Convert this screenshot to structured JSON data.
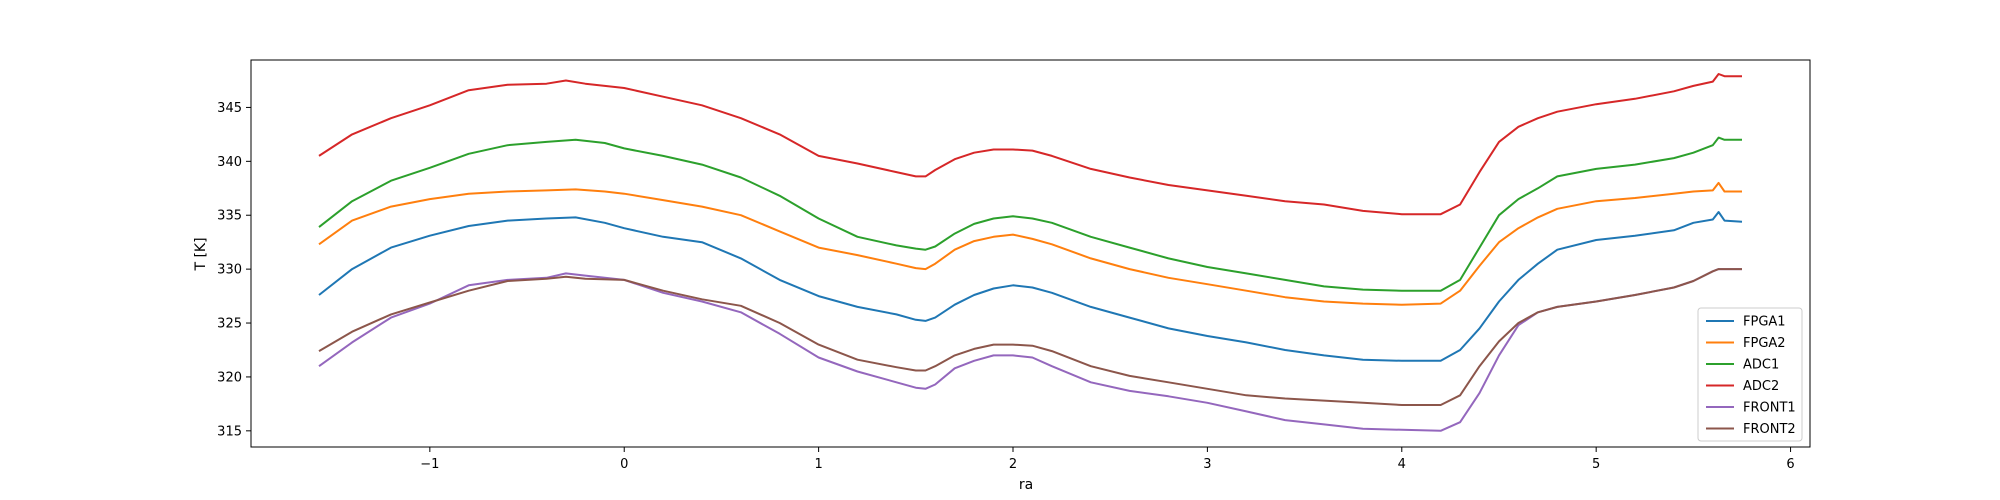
{
  "chart_data": {
    "type": "line",
    "xlabel": "ra",
    "ylabel": "T [K]",
    "xlim": [
      -1.92,
      6.1
    ],
    "ylim": [
      313.5,
      349.4
    ],
    "xticks": [
      -1,
      0,
      1,
      2,
      3,
      4,
      5,
      6
    ],
    "yticks": [
      315,
      320,
      325,
      330,
      335,
      340,
      345
    ],
    "grid": false,
    "legend_position": "lower-right",
    "series": [
      {
        "name": "FPGA1",
        "color": "#1f77b4",
        "x": [
          -1.57,
          -1.4,
          -1.2,
          -1.0,
          -0.8,
          -0.6,
          -0.4,
          -0.25,
          -0.1,
          0.0,
          0.2,
          0.4,
          0.6,
          0.8,
          1.0,
          1.2,
          1.4,
          1.5,
          1.55,
          1.6,
          1.7,
          1.8,
          1.9,
          2.0,
          2.1,
          2.2,
          2.4,
          2.6,
          2.8,
          3.0,
          3.2,
          3.4,
          3.6,
          3.8,
          4.0,
          4.2,
          4.3,
          4.4,
          4.5,
          4.6,
          4.7,
          4.8,
          5.0,
          5.2,
          5.4,
          5.5,
          5.6,
          5.63,
          5.66,
          5.75
        ],
        "y": [
          327.6,
          330.0,
          332.0,
          333.1,
          334.0,
          334.5,
          334.7,
          334.8,
          334.3,
          333.8,
          333.0,
          332.5,
          331.0,
          329.0,
          327.5,
          326.5,
          325.8,
          325.3,
          325.2,
          325.5,
          326.7,
          327.6,
          328.2,
          328.5,
          328.3,
          327.8,
          326.5,
          325.5,
          324.5,
          323.8,
          323.2,
          322.5,
          322.0,
          321.6,
          321.5,
          321.5,
          322.5,
          324.5,
          327.0,
          329.0,
          330.5,
          331.8,
          332.7,
          333.1,
          333.6,
          334.3,
          334.6,
          335.3,
          334.5,
          334.4
        ]
      },
      {
        "name": "FPGA2",
        "color": "#ff7f0e",
        "x": [
          -1.57,
          -1.4,
          -1.2,
          -1.0,
          -0.8,
          -0.6,
          -0.4,
          -0.25,
          -0.1,
          0.0,
          0.2,
          0.4,
          0.6,
          0.8,
          1.0,
          1.2,
          1.4,
          1.5,
          1.55,
          1.6,
          1.7,
          1.8,
          1.9,
          2.0,
          2.1,
          2.2,
          2.4,
          2.6,
          2.8,
          3.0,
          3.2,
          3.4,
          3.6,
          3.8,
          4.0,
          4.2,
          4.3,
          4.4,
          4.5,
          4.6,
          4.7,
          4.8,
          5.0,
          5.2,
          5.4,
          5.5,
          5.6,
          5.63,
          5.66,
          5.75
        ],
        "y": [
          332.3,
          334.5,
          335.8,
          336.5,
          337.0,
          337.2,
          337.3,
          337.4,
          337.2,
          337.0,
          336.4,
          335.8,
          335.0,
          333.5,
          332.0,
          331.3,
          330.5,
          330.1,
          330.0,
          330.5,
          331.8,
          332.6,
          333.0,
          333.2,
          332.8,
          332.3,
          331.0,
          330.0,
          329.2,
          328.6,
          328.0,
          327.4,
          327.0,
          326.8,
          326.7,
          326.8,
          328.0,
          330.3,
          332.5,
          333.8,
          334.8,
          335.6,
          336.3,
          336.6,
          337.0,
          337.2,
          337.3,
          338.0,
          337.2,
          337.2
        ]
      },
      {
        "name": "ADC1",
        "color": "#2ca02c",
        "x": [
          -1.57,
          -1.4,
          -1.2,
          -1.0,
          -0.8,
          -0.6,
          -0.4,
          -0.25,
          -0.1,
          0.0,
          0.2,
          0.4,
          0.6,
          0.8,
          1.0,
          1.2,
          1.4,
          1.5,
          1.55,
          1.6,
          1.7,
          1.8,
          1.9,
          2.0,
          2.1,
          2.2,
          2.4,
          2.6,
          2.8,
          3.0,
          3.2,
          3.4,
          3.6,
          3.8,
          4.0,
          4.2,
          4.3,
          4.4,
          4.5,
          4.6,
          4.7,
          4.8,
          5.0,
          5.2,
          5.4,
          5.5,
          5.6,
          5.63,
          5.66,
          5.75
        ],
        "y": [
          333.9,
          336.3,
          338.2,
          339.4,
          340.7,
          341.5,
          341.8,
          342.0,
          341.7,
          341.2,
          340.5,
          339.7,
          338.5,
          336.8,
          334.7,
          333.0,
          332.2,
          331.9,
          331.8,
          332.1,
          333.3,
          334.2,
          334.7,
          334.9,
          334.7,
          334.3,
          333.0,
          332.0,
          331.0,
          330.2,
          329.6,
          329.0,
          328.4,
          328.1,
          328.0,
          328.0,
          329.0,
          332.0,
          335.0,
          336.5,
          337.5,
          338.6,
          339.3,
          339.7,
          340.3,
          340.8,
          341.5,
          342.2,
          342.0,
          342.0
        ]
      },
      {
        "name": "ADC2",
        "color": "#d62728",
        "x": [
          -1.57,
          -1.4,
          -1.2,
          -1.0,
          -0.8,
          -0.6,
          -0.4,
          -0.3,
          -0.2,
          0.0,
          0.2,
          0.4,
          0.6,
          0.8,
          1.0,
          1.2,
          1.4,
          1.5,
          1.55,
          1.6,
          1.7,
          1.8,
          1.9,
          2.0,
          2.1,
          2.2,
          2.4,
          2.6,
          2.8,
          3.0,
          3.2,
          3.4,
          3.6,
          3.8,
          4.0,
          4.2,
          4.3,
          4.4,
          4.5,
          4.6,
          4.7,
          4.8,
          5.0,
          5.2,
          5.4,
          5.5,
          5.6,
          5.63,
          5.66,
          5.75
        ],
        "y": [
          340.5,
          342.5,
          344.0,
          345.2,
          346.6,
          347.1,
          347.2,
          347.5,
          347.2,
          346.8,
          346.0,
          345.2,
          344.0,
          342.5,
          340.5,
          339.8,
          339.0,
          338.6,
          338.6,
          339.2,
          340.2,
          340.8,
          341.1,
          341.1,
          341.0,
          340.5,
          339.3,
          338.5,
          337.8,
          337.3,
          336.8,
          336.3,
          336.0,
          335.4,
          335.1,
          335.1,
          336.0,
          339.0,
          341.8,
          343.2,
          344.0,
          344.6,
          345.3,
          345.8,
          346.5,
          347.0,
          347.4,
          348.1,
          347.9,
          347.9
        ]
      },
      {
        "name": "FRONT1",
        "color": "#9467bd",
        "x": [
          -1.57,
          -1.4,
          -1.2,
          -1.0,
          -0.8,
          -0.6,
          -0.4,
          -0.3,
          -0.2,
          0.0,
          0.2,
          0.4,
          0.6,
          0.8,
          1.0,
          1.2,
          1.4,
          1.5,
          1.55,
          1.6,
          1.7,
          1.8,
          1.9,
          2.0,
          2.1,
          2.2,
          2.4,
          2.6,
          2.8,
          3.0,
          3.2,
          3.4,
          3.6,
          3.8,
          4.0,
          4.2,
          4.3,
          4.4,
          4.5,
          4.6,
          4.7,
          4.8,
          5.0,
          5.2,
          5.4,
          5.5,
          5.6,
          5.63,
          5.66,
          5.75
        ],
        "y": [
          321.0,
          323.2,
          325.5,
          326.8,
          328.5,
          329.0,
          329.2,
          329.6,
          329.4,
          329.0,
          327.8,
          327.0,
          326.0,
          324.0,
          321.8,
          320.5,
          319.5,
          319.0,
          318.9,
          319.3,
          320.8,
          321.5,
          322.0,
          322.0,
          321.8,
          321.0,
          319.5,
          318.7,
          318.2,
          317.6,
          316.8,
          316.0,
          315.6,
          315.2,
          315.1,
          315.0,
          315.8,
          318.5,
          322.0,
          324.8,
          326.0,
          326.5,
          327.0,
          327.6,
          328.3,
          328.9,
          329.8,
          330.0,
          330.0,
          330.0
        ]
      },
      {
        "name": "FRONT2",
        "color": "#8c564b",
        "x": [
          -1.57,
          -1.4,
          -1.2,
          -1.0,
          -0.8,
          -0.6,
          -0.4,
          -0.3,
          -0.2,
          0.0,
          0.2,
          0.4,
          0.6,
          0.8,
          1.0,
          1.2,
          1.4,
          1.5,
          1.55,
          1.6,
          1.7,
          1.8,
          1.9,
          2.0,
          2.1,
          2.2,
          2.4,
          2.6,
          2.8,
          3.0,
          3.2,
          3.4,
          3.6,
          3.8,
          4.0,
          4.2,
          4.3,
          4.4,
          4.5,
          4.6,
          4.7,
          4.8,
          5.0,
          5.2,
          5.4,
          5.5,
          5.6,
          5.63,
          5.66,
          5.75
        ],
        "y": [
          322.4,
          324.2,
          325.8,
          326.9,
          328.0,
          328.9,
          329.1,
          329.3,
          329.1,
          329.0,
          328.0,
          327.2,
          326.6,
          325.0,
          323.0,
          321.6,
          320.9,
          320.6,
          320.6,
          321.0,
          322.0,
          322.6,
          323.0,
          323.0,
          322.9,
          322.4,
          321.0,
          320.1,
          319.5,
          318.9,
          318.3,
          318.0,
          317.8,
          317.6,
          317.4,
          317.4,
          318.3,
          321.0,
          323.3,
          325.0,
          326.0,
          326.5,
          327.0,
          327.6,
          328.3,
          328.9,
          329.8,
          330.0,
          330.0,
          330.0
        ]
      }
    ]
  }
}
